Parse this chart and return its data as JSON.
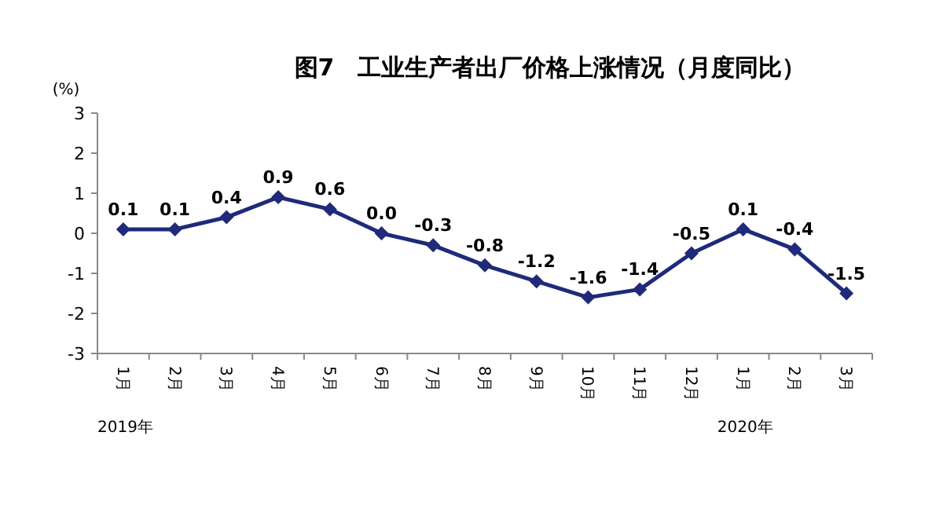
{
  "chart_data": {
    "type": "line",
    "title": "图7　工业生产者出厂价格上涨情况（月度同比）",
    "ylabel": "(%)",
    "categories": [
      "1月",
      "2月",
      "3月",
      "4月",
      "5月",
      "6月",
      "7月",
      "8月",
      "9月",
      "10月",
      "11月",
      "12月",
      "1月",
      "2月",
      "3月"
    ],
    "series": [
      {
        "color": "#1f2a7a",
        "values": [
          0.1,
          0.1,
          0.4,
          0.9,
          0.6,
          0.0,
          -0.3,
          -0.8,
          -1.2,
          -1.6,
          -1.4,
          -0.5,
          0.1,
          -0.4,
          -1.5
        ],
        "value_labels": [
          "0.1",
          "0.1",
          "0.4",
          "0.9",
          "0.6",
          "0.0",
          "-0.3",
          "-0.8",
          "-1.2",
          "-1.6",
          "-1.4",
          "-0.5",
          "0.1",
          "-0.4",
          "-1.5"
        ]
      }
    ],
    "ylim": [
      -3,
      3
    ],
    "yticks": [
      -3,
      -2,
      -1,
      0,
      1,
      2,
      3
    ],
    "grid": false,
    "marker": "diamond",
    "line_style": "solid",
    "annotations": [
      "2019年",
      "2020年"
    ]
  }
}
